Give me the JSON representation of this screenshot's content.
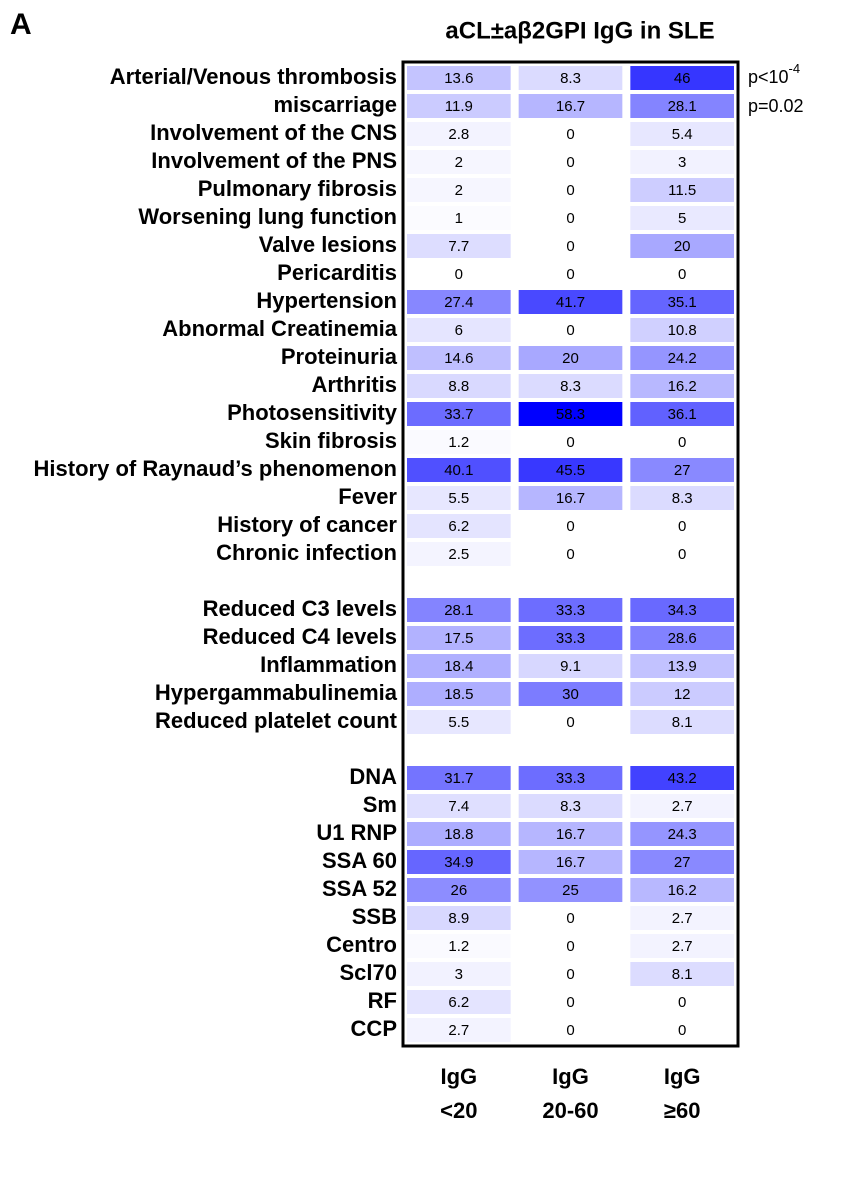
{
  "chart_data": {
    "type": "heatmap",
    "panel_label": "A",
    "title": "aCL±aβ2GPI IgG in SLE",
    "columns": [
      [
        "IgG",
        "<20"
      ],
      [
        "IgG",
        "20-60"
      ],
      [
        "IgG",
        "≥60"
      ]
    ],
    "low_color": "#ffffff",
    "high_color": "#0000ff",
    "groups": [
      {
        "rows": [
          "Arterial/Venous thrombosis",
          "miscarriage",
          "Involvement of the CNS",
          "Involvement of the PNS",
          "Pulmonary fibrosis",
          "Worsening lung function",
          "Valve lesions",
          "Pericarditis",
          "Hypertension",
          "Abnormal Creatinemia",
          "Proteinuria",
          "Arthritis",
          "Photosensitivity",
          "Skin fibrosis",
          "History of Raynaud’s phenomenon",
          "Fever",
          "History of cancer",
          "Chronic infection"
        ],
        "values": [
          [
            13.6,
            8.3,
            46.0
          ],
          [
            11.9,
            16.7,
            28.1
          ],
          [
            2.8,
            0.0,
            5.4
          ],
          [
            2.0,
            0.0,
            3.0
          ],
          [
            2.0,
            0.0,
            11.5
          ],
          [
            1.0,
            0.0,
            5.0
          ],
          [
            7.7,
            0.0,
            20.0
          ],
          [
            0.0,
            0.0,
            0.0
          ],
          [
            27.4,
            41.7,
            35.1
          ],
          [
            6.0,
            0.0,
            10.8
          ],
          [
            14.6,
            20.0,
            24.2
          ],
          [
            8.8,
            8.3,
            16.2
          ],
          [
            33.7,
            58.3,
            36.1
          ],
          [
            1.2,
            0.0,
            0.0
          ],
          [
            40.1,
            45.5,
            27.0
          ],
          [
            5.5,
            16.7,
            8.3
          ],
          [
            6.2,
            0.0,
            0.0
          ],
          [
            2.5,
            0.0,
            0.0
          ]
        ]
      },
      {
        "rows": [
          "Reduced C3 levels",
          "Reduced C4 levels",
          "Inflammation",
          "Hypergammabulinemia",
          "Reduced platelet count"
        ],
        "values": [
          [
            28.1,
            33.3,
            34.3
          ],
          [
            17.5,
            33.3,
            28.6
          ],
          [
            18.4,
            9.1,
            13.9
          ],
          [
            18.5,
            30.0,
            12.0
          ],
          [
            5.5,
            0.0,
            8.1
          ]
        ]
      },
      {
        "rows": [
          "DNA",
          "Sm",
          "U1 RNP",
          "SSA 60",
          "SSA 52",
          "SSB",
          "Centro",
          "Scl70",
          "RF",
          "CCP"
        ],
        "values": [
          [
            31.7,
            33.3,
            43.2
          ],
          [
            7.4,
            8.3,
            2.7
          ],
          [
            18.8,
            16.7,
            24.3
          ],
          [
            34.9,
            16.7,
            27.0
          ],
          [
            26.0,
            25.0,
            16.2
          ],
          [
            8.9,
            0.0,
            2.7
          ],
          [
            1.2,
            0.0,
            2.7
          ],
          [
            3.0,
            0.0,
            8.1
          ],
          [
            6.2,
            0.0,
            0.0
          ],
          [
            2.7,
            0.0,
            0.0
          ]
        ]
      }
    ],
    "annotations": [
      {
        "text": "p<10",
        "sup": "-4"
      },
      {
        "text": "p=0.02"
      }
    ]
  }
}
